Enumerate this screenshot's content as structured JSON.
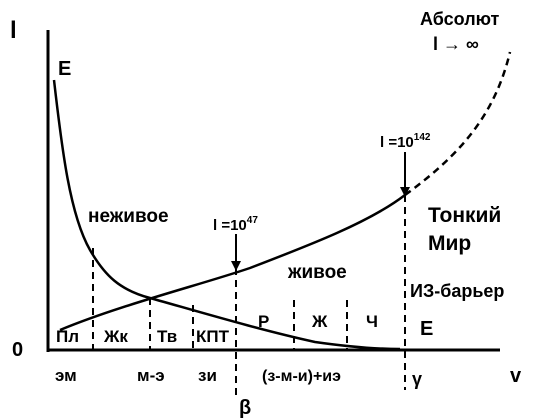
{
  "axes": {
    "y_axis_label": "l",
    "x_axis_label": "v",
    "origin_label": "0",
    "beta_label": "β"
  },
  "curves": {
    "decreasing_label": "E",
    "endpoint_label": "E"
  },
  "regions": {
    "nonliving": "неживое",
    "living": "живое",
    "subtle_world_line1": "Тонкий",
    "subtle_world_line2": "Мир",
    "barrier": "ИЗ-барьер",
    "absolute_line1": "Абсолют",
    "absolute_line2": "l → ∞"
  },
  "annotations": {
    "l47_base": "l =10",
    "l47_exp": "47",
    "l142_base": "l =10",
    "l142_exp": "142"
  },
  "segments": {
    "pl": "Пл",
    "zhk": "Жк",
    "tv": "Тв",
    "kpt": "КПТ",
    "r": "Р",
    "zh": "Ж",
    "ch": "Ч"
  },
  "bottom_labels": {
    "em": "эм",
    "m_e": "м-э",
    "zi": "зи",
    "combo": "(з-м-и)+иэ",
    "gamma": "γ"
  },
  "colors": {
    "ink": "#000000",
    "background": "#ffffff"
  }
}
